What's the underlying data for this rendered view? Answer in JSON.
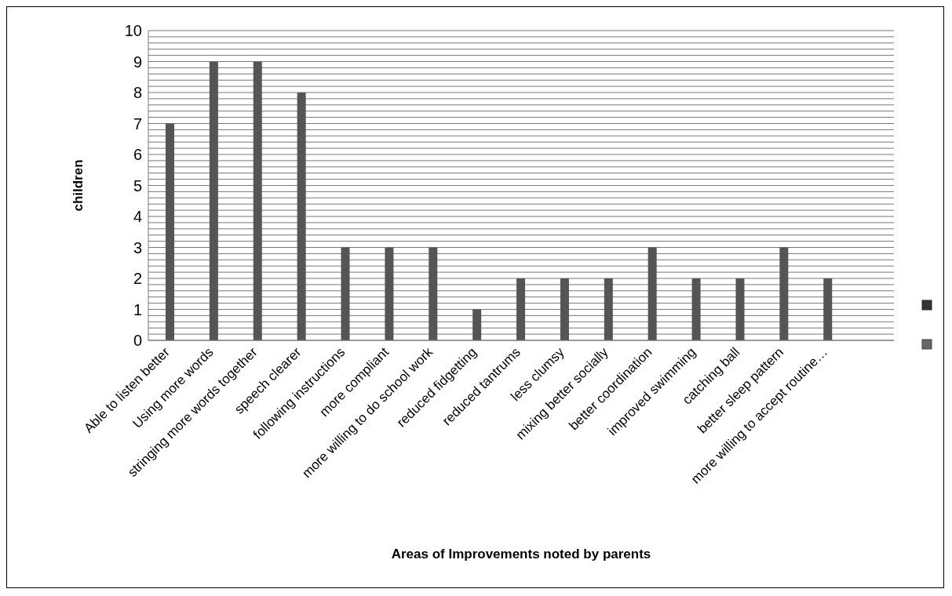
{
  "chart_data": {
    "type": "bar",
    "xlabel": "Areas of Improvements noted by parents",
    "ylabel": "children",
    "categories": [
      "Able to listen better",
      "Using more words",
      "stringing more words together",
      "speech clearer",
      "following instructions",
      "more compliant",
      "more willing to do school work",
      "reduced fidgetting",
      "reduced tantrums",
      "less clumsy",
      "mixing better socially",
      "better coordination",
      "improved swimming",
      "catching ball",
      "better sleep pattern",
      "more willing to accept routine…",
      null
    ],
    "values": [
      7,
      9,
      9,
      8,
      3,
      3,
      3,
      1,
      2,
      2,
      2,
      3,
      2,
      2,
      3,
      2,
      null
    ],
    "color": "#555555",
    "ylim": [
      0,
      10
    ],
    "yticks": [
      0,
      {
        "value": 0.2,
        "label": null
      },
      {
        "value": 0.4,
        "label": null
      },
      {
        "value": 0.6,
        "label": null
      },
      {
        "value": 0.8,
        "label": null
      },
      1,
      {
        "value": 1.2,
        "label": null
      },
      {
        "value": 1.4,
        "label": null
      },
      {
        "value": 1.6,
        "label": null
      },
      {
        "value": 1.8,
        "label": null
      },
      2,
      {
        "value": 2.2,
        "label": null
      },
      {
        "value": 2.4,
        "label": null
      },
      {
        "value": 2.6,
        "label": null
      },
      {
        "value": 2.8,
        "label": null
      },
      3,
      {
        "value": 3.2,
        "label": null
      },
      {
        "value": 3.4,
        "label": null
      },
      {
        "value": 3.6,
        "label": null
      },
      {
        "value": 3.8,
        "label": null
      },
      4,
      {
        "value": 4.2,
        "label": null
      },
      {
        "value": 4.4,
        "label": null
      },
      {
        "value": 4.6,
        "label": null
      },
      {
        "value": 4.8,
        "label": null
      },
      5,
      {
        "value": 5.2,
        "label": null
      },
      {
        "value": 5.4,
        "label": null
      },
      {
        "value": 5.6,
        "label": null
      },
      {
        "value": 5.8,
        "label": null
      },
      6,
      {
        "value": 6.2,
        "label": null
      },
      {
        "value": 6.4,
        "label": null
      },
      {
        "value": 6.6,
        "label": null
      },
      {
        "value": 6.8,
        "label": null
      },
      7,
      {
        "value": 7.2,
        "label": null
      },
      {
        "value": 7.4,
        "label": null
      },
      {
        "value": 7.6,
        "label": null
      },
      {
        "value": 7.8,
        "label": null
      },
      8,
      {
        "value": 8.2,
        "label": null
      },
      {
        "value": 8.4,
        "label": null
      },
      {
        "value": 8.6,
        "label": null
      },
      {
        "value": 8.8,
        "label": null
      },
      9,
      {
        "value": 9.2,
        "label": null
      },
      {
        "value": 9.4,
        "label": null
      },
      {
        "value": 9.6,
        "label": null
      },
      {
        "value": 9.8,
        "label": null
      },
      10
    ],
    "grid": "y"
  }
}
